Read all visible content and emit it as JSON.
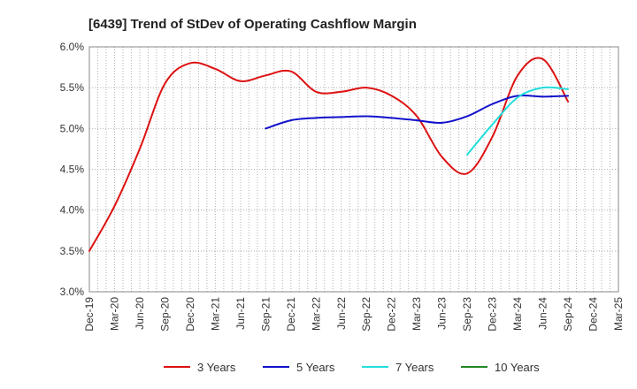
{
  "chart_data": {
    "type": "line",
    "title": "[6439]  Trend of StDev of Operating Cashflow Margin",
    "xlabel": "",
    "ylabel": "",
    "x": [
      "Dec-19",
      "Mar-20",
      "Jun-20",
      "Sep-20",
      "Dec-20",
      "Mar-21",
      "Jun-21",
      "Sep-21",
      "Dec-21",
      "Mar-22",
      "Jun-22",
      "Sep-22",
      "Dec-22",
      "Mar-23",
      "Jun-23",
      "Sep-23",
      "Dec-23",
      "Mar-24",
      "Jun-24",
      "Sep-24",
      "Dec-24",
      "Mar-25"
    ],
    "ylim": [
      3.0,
      6.0
    ],
    "yticks": [
      3.0,
      3.5,
      4.0,
      4.5,
      5.0,
      5.5,
      6.0
    ],
    "ytick_labels": [
      "3.0%",
      "3.5%",
      "4.0%",
      "4.5%",
      "5.0%",
      "5.5%",
      "6.0%"
    ],
    "grid": true,
    "legend_position": "bottom",
    "series": [
      {
        "name": "3 Years",
        "color": "#dd1111",
        "values": [
          3.5,
          4.05,
          4.75,
          5.55,
          5.8,
          5.73,
          5.58,
          5.65,
          5.7,
          5.45,
          5.45,
          5.5,
          5.4,
          5.15,
          4.65,
          4.45,
          4.9,
          5.65,
          5.85,
          5.33,
          null,
          null
        ]
      },
      {
        "name": "5 Years",
        "color": "#1111cc",
        "values": [
          null,
          null,
          null,
          null,
          null,
          null,
          null,
          5.0,
          5.1,
          5.13,
          5.14,
          5.15,
          5.13,
          5.1,
          5.07,
          5.15,
          5.3,
          5.4,
          5.39,
          5.4,
          null,
          null
        ]
      },
      {
        "name": "7 Years",
        "color": "#22dddd",
        "values": [
          null,
          null,
          null,
          null,
          null,
          null,
          null,
          null,
          null,
          null,
          null,
          null,
          null,
          null,
          null,
          4.68,
          5.05,
          5.38,
          5.5,
          5.48,
          null,
          null
        ]
      },
      {
        "name": "10 Years",
        "color": "#228822",
        "values": [
          null,
          null,
          null,
          null,
          null,
          null,
          null,
          null,
          null,
          null,
          null,
          null,
          null,
          null,
          null,
          null,
          null,
          null,
          null,
          null,
          null,
          null
        ]
      }
    ]
  }
}
